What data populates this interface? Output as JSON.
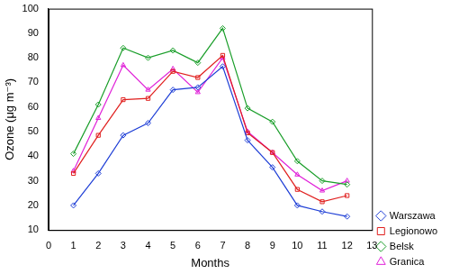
{
  "chart_data": {
    "type": "line",
    "x_label": "Months",
    "y_label": "Ozone (μg m⁻³)",
    "x": [
      1,
      2,
      3,
      4,
      5,
      6,
      7,
      8,
      9,
      10,
      11,
      12
    ],
    "series": [
      {
        "name": "Warszawa",
        "color": "#1f3fd6",
        "marker": "diamond",
        "values": [
          20,
          33,
          48.5,
          53.5,
          67,
          68,
          76.5,
          46.5,
          35.5,
          20,
          17.5,
          15.5
        ]
      },
      {
        "name": "Legionowo",
        "color": "#e0201f",
        "marker": "square",
        "values": [
          33,
          48.5,
          63,
          63.5,
          74.5,
          72,
          81,
          49.5,
          41.5,
          26.5,
          21.5,
          24
        ]
      },
      {
        "name": "Belsk",
        "color": "#1a9e2a",
        "marker": "diamond",
        "values": [
          41,
          61,
          84,
          80,
          83,
          78,
          92,
          59.5,
          54,
          38,
          30,
          28.5
        ]
      },
      {
        "name": "Granica",
        "color": "#e020d8",
        "marker": "triangle",
        "values": [
          34,
          55.5,
          77,
          67,
          75.5,
          66,
          80,
          50,
          41.5,
          32.5,
          26,
          30
        ]
      }
    ],
    "xlim": [
      0,
      13
    ],
    "xticks": [
      0,
      1,
      2,
      3,
      4,
      5,
      6,
      7,
      8,
      9,
      10,
      11,
      12,
      13
    ],
    "ylim": [
      10,
      100
    ],
    "yticks": [
      10,
      20,
      30,
      40,
      50,
      60,
      70,
      80,
      90,
      100
    ],
    "grid": false,
    "legend": "right"
  }
}
